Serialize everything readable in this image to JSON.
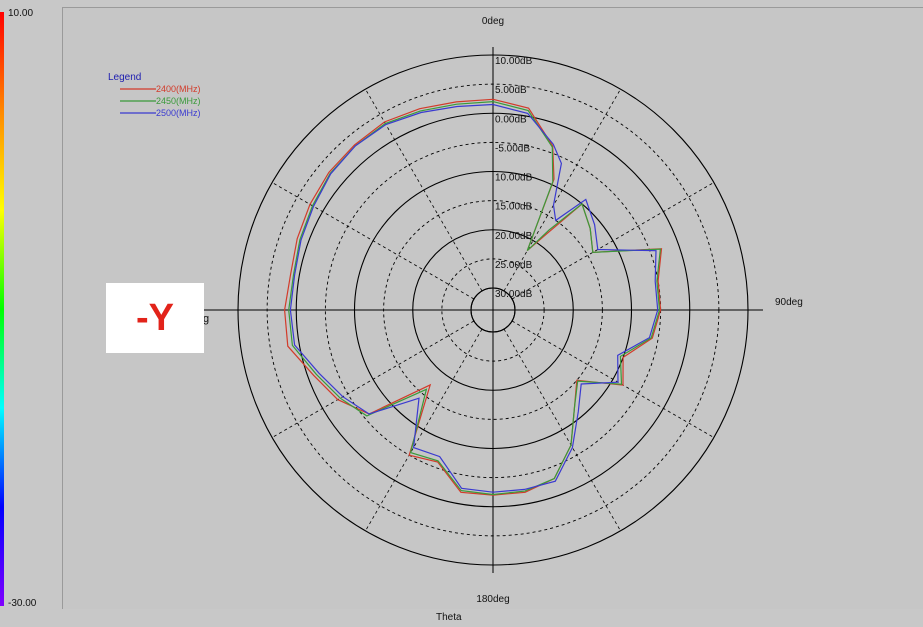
{
  "page_label": "-Y",
  "colors": {
    "background": "#c6c6c6",
    "grid": "#000000",
    "label_red": "#e2231a"
  },
  "chart_data": {
    "type": "polar",
    "colorbar_max": "10.00",
    "colorbar_min": "-30.00",
    "xlabel": "Theta",
    "angle_labels": [
      "0deg",
      "90deg",
      "180deg"
    ],
    "left_angle_label_partial": "g",
    "radial_labels": [
      "10.00dB",
      "5.00dB",
      "0.00dB",
      "-5.00dB",
      "-10.00dB",
      "-15.00dB",
      "-20.00dB",
      "-25.00dB",
      "-30.00dB"
    ],
    "radial_label_display": [
      "10.00dB",
      "5.00dB",
      "0.00dB",
      "-5.00dB",
      "10.00dB",
      "15.00dB",
      "20.00dB",
      "25.00dB",
      "30.00dB"
    ],
    "rlim": [
      -30,
      10
    ],
    "legend_title": "Legend",
    "grid": true,
    "legend_position": "top-left",
    "series": [
      {
        "name": "2400(MHz)",
        "color": "#d23b2a",
        "theta": [
          0,
          10,
          20,
          25,
          30,
          35,
          40,
          50,
          60,
          70,
          80,
          90,
          100,
          110,
          120,
          130,
          140,
          150,
          160,
          170,
          180,
          190,
          200,
          210,
          220,
          230,
          240,
          250,
          260,
          270,
          280,
          290,
          300,
          310,
          320,
          330,
          340,
          350
        ],
        "gain": [
          2.4,
          1.4,
          -3.8,
          -9,
          -22,
          -18,
          -10,
          -12,
          -14,
          -3,
          -5,
          -5,
          -6,
          -10,
          -8,
          -15,
          -12,
          -7,
          -3,
          -2,
          -2,
          -2,
          -6,
          -5,
          -17,
          -6,
          -3,
          -1,
          2,
          2,
          1.5,
          2,
          2.5,
          3,
          3.2,
          3.5,
          3,
          2.5
        ]
      },
      {
        "name": "2450(MHz)",
        "color": "#3a9a3a",
        "theta": [
          0,
          10,
          20,
          25,
          30,
          35,
          40,
          50,
          60,
          70,
          80,
          90,
          100,
          110,
          120,
          130,
          140,
          150,
          160,
          170,
          180,
          190,
          200,
          210,
          220,
          230,
          240,
          250,
          260,
          270,
          280,
          290,
          300,
          310,
          320,
          330,
          340,
          350
        ],
        "gain": [
          2.0,
          1.0,
          -4.0,
          -9.5,
          -22,
          -17,
          -10,
          -12,
          -14,
          -3.2,
          -5.2,
          -5.2,
          -6.2,
          -10.5,
          -8.3,
          -14.8,
          -12,
          -7,
          -3,
          -2.2,
          -2.1,
          -2.3,
          -6.2,
          -5.5,
          -16,
          -5.5,
          -3.5,
          -1.5,
          1.2,
          1.3,
          1.0,
          1.5,
          2.0,
          2.7,
          3.0,
          3.2,
          2.6,
          2.1
        ]
      },
      {
        "name": "2500(MHz)",
        "color": "#3a3ad0",
        "theta": [
          0,
          10,
          20,
          25,
          30,
          35,
          40,
          50,
          60,
          70,
          80,
          90,
          100,
          110,
          120,
          130,
          140,
          150,
          160,
          170,
          180,
          190,
          200,
          210,
          220,
          230,
          240,
          250,
          260,
          270,
          280,
          290,
          300,
          310,
          320,
          330,
          340,
          350
        ],
        "gain": [
          1.5,
          0.5,
          -3.5,
          -6,
          -13,
          -15,
          -9,
          -11,
          -13,
          -4,
          -5.5,
          -5.5,
          -6.5,
          -11,
          -9,
          -14,
          -11,
          -6.5,
          -2.5,
          -2.5,
          -2.5,
          -2.7,
          -7,
          -6.5,
          -14,
          -6,
          -4,
          -2,
          0.8,
          1.0,
          0.8,
          1.3,
          1.8,
          2.6,
          3.0,
          3.0,
          2.3,
          1.7
        ]
      }
    ]
  }
}
